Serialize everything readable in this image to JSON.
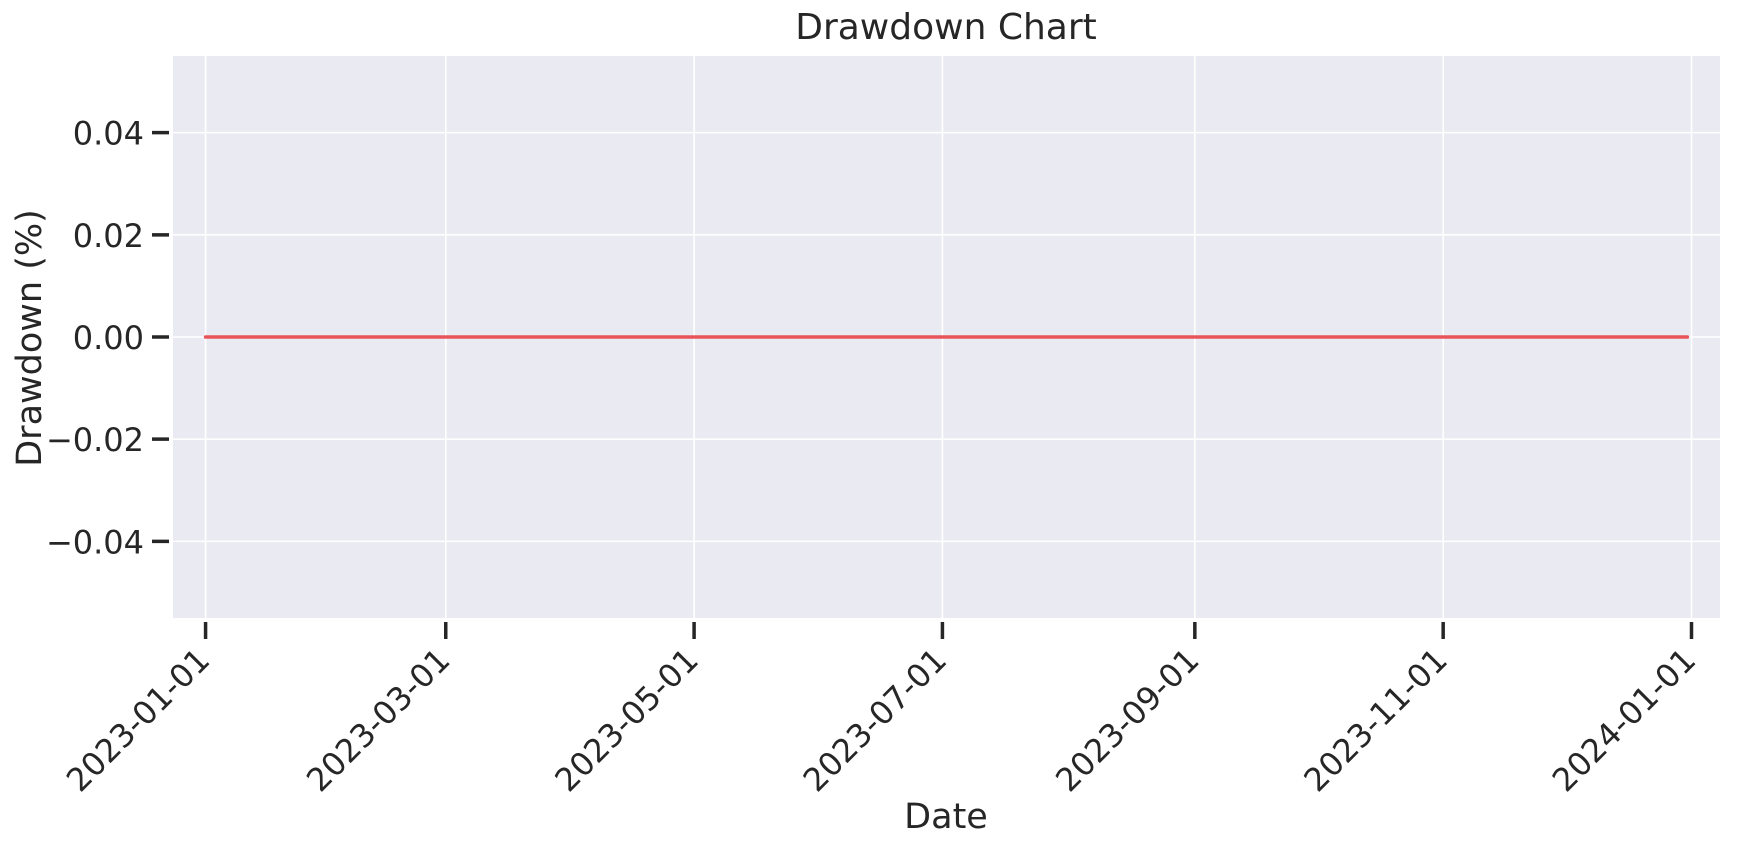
{
  "chart_data": {
    "type": "line",
    "title": "Drawdown Chart",
    "xlabel": "Date",
    "ylabel": "Drawdown (%)",
    "x_ticks": [
      "2023-01-01",
      "2023-03-01",
      "2023-05-01",
      "2023-07-01",
      "2023-09-01",
      "2023-11-01",
      "2024-01-01"
    ],
    "y_ticks": [
      0.04,
      0.02,
      0.0,
      -0.02,
      -0.04
    ],
    "y_tick_labels": [
      "0.04",
      "0.02",
      "0.00",
      "−0.02",
      "−0.04"
    ],
    "xlim": [
      "2022-12-24",
      "2024-01-08"
    ],
    "ylim": [
      -0.055,
      0.055
    ],
    "grid": true,
    "series": [
      {
        "x": [
          "2023-01-01",
          "2023-12-31"
        ],
        "y": [
          0.0,
          0.0
        ],
        "color": "#e8545a"
      }
    ]
  },
  "colors": {
    "plot_background": "#eaeaf2",
    "grid": "#ffffff",
    "text": "#262626",
    "series_line": "#e8545a"
  }
}
